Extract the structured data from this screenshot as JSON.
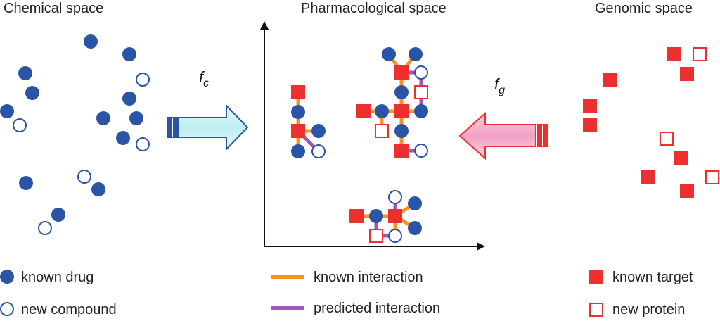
{
  "panels": {
    "chemical": "Chemical space",
    "pharmacological": "Pharmacological space",
    "genomic": "Genomic space"
  },
  "functions": {
    "chemical": {
      "symbol": "f",
      "subscript": "c"
    },
    "genomic": {
      "symbol": "f",
      "subscript": "g"
    }
  },
  "legend": {
    "known_drug": "known drug",
    "new_compound": "new compound",
    "known_interaction": "known interaction",
    "predicted_interaction": "predicted interaction",
    "known_target": "known target",
    "new_protein": "new protein"
  },
  "colors": {
    "drug": "#2a54a6",
    "target": "#ee2f2f",
    "known_interaction": "#f7931e",
    "predicted_interaction": "#a155b9",
    "arrow_fc_fill": "#c8f0f4",
    "arrow_fc_stroke": "#2a54a6",
    "arrow_fg_fill": "#f6a6c9",
    "arrow_fg_stroke": "#ee2f2f"
  }
}
